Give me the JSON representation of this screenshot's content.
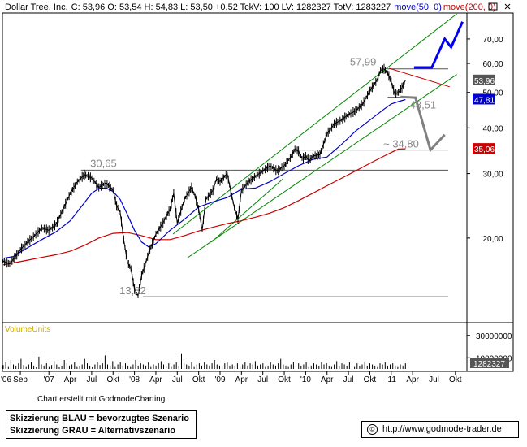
{
  "header": {
    "title": "Dollar Tree, Inc.",
    "quote": "C: 53,96  O: 53,54  H: 54,83  L: 53,50  +0,52  TckV: 100  LV: 1282327  TotV: 1283227",
    "ma50_label": "move(50, 0)",
    "ma200_label": "move(200, 0)",
    "ma50_color": "#0000cc",
    "ma200_color": "#cc0000"
  },
  "chart_data": {
    "type": "line",
    "yscale": "log",
    "ylim": [
      11.8,
      82
    ],
    "y_ticks": [
      {
        "value": 20,
        "label": "20,00"
      },
      {
        "value": 30,
        "label": "30,00"
      },
      {
        "value": 40,
        "label": "40,00"
      },
      {
        "value": 50,
        "label": "50,00"
      },
      {
        "value": 60,
        "label": "60,00"
      },
      {
        "value": 70,
        "label": "70,00"
      }
    ],
    "x_ticks": [
      {
        "t": 9,
        "label": "'06"
      },
      {
        "t": 11,
        "label": "Sep"
      },
      {
        "t": 15,
        "label": "'07"
      },
      {
        "t": 18,
        "label": "Apr"
      },
      {
        "t": 21,
        "label": "Jul"
      },
      {
        "t": 24,
        "label": "Okt"
      },
      {
        "t": 27,
        "label": "'08"
      },
      {
        "t": 30,
        "label": "Apr"
      },
      {
        "t": 33,
        "label": "Jul"
      },
      {
        "t": 36,
        "label": "Okt"
      },
      {
        "t": 39,
        "label": "'09"
      },
      {
        "t": 42,
        "label": "Apr"
      },
      {
        "t": 45,
        "label": "Jul"
      },
      {
        "t": 48,
        "label": "Okt"
      },
      {
        "t": 51,
        "label": "'10"
      },
      {
        "t": 54,
        "label": "Apr"
      },
      {
        "t": 57,
        "label": "Jul"
      },
      {
        "t": 60,
        "label": "Okt"
      },
      {
        "t": 63,
        "label": "'11"
      },
      {
        "t": 66,
        "label": "Apr"
      },
      {
        "t": 69,
        "label": "Jul"
      },
      {
        "t": 72,
        "label": "Okt"
      }
    ],
    "xlim": [
      8.6,
      73.5
    ],
    "series": [
      {
        "name": "Dollar Tree, Inc.",
        "color": "#000000",
        "x": [
          8.6,
          9.5,
          10.5,
          11,
          12,
          13,
          14,
          15,
          16,
          17,
          18,
          19,
          20,
          21,
          22,
          23,
          24,
          24.5,
          25,
          25.5,
          26,
          26.5,
          27,
          27.5,
          28,
          29,
          30,
          31,
          32,
          32.5,
          33,
          34,
          35,
          35.5,
          36,
          36.5,
          37,
          38,
          38.5,
          39,
          40,
          41,
          41.5,
          42,
          43,
          44,
          45,
          46,
          47,
          48,
          49,
          49.5,
          50,
          50.5,
          51,
          51.5,
          52,
          53,
          54,
          55,
          56,
          57,
          58,
          59,
          60,
          61,
          61.5,
          62,
          62.5,
          63,
          63.5,
          64,
          64.5,
          65
        ],
        "y": [
          17.3,
          17.0,
          18.0,
          18.6,
          19.5,
          20.3,
          21.3,
          21.0,
          21.8,
          24.0,
          26.5,
          28.5,
          29.8,
          29.2,
          27.5,
          28.3,
          27.0,
          24.5,
          23.5,
          19.8,
          17.2,
          16.5,
          14.5,
          13.9,
          15.8,
          18.2,
          20.5,
          22.0,
          24.0,
          26.5,
          22.0,
          25.5,
          27.5,
          26.0,
          24.0,
          21.0,
          25.5,
          27.0,
          29.0,
          28.5,
          30.0,
          24.2,
          22.5,
          27.0,
          28.5,
          29.5,
          30.5,
          31.5,
          30.5,
          31.5,
          33.5,
          35.0,
          34.5,
          33.0,
          33.5,
          32.5,
          33.5,
          33.8,
          38.5,
          41.0,
          42.0,
          43.5,
          44.5,
          46.5,
          50.5,
          54.0,
          57.5,
          58.0,
          56.5,
          53.5,
          49.5,
          50.0,
          51.5,
          53.96
        ]
      },
      {
        "name": "move(50, 0)",
        "color": "#0000cc",
        "x": [
          8.6,
          10,
          12,
          14,
          16,
          18,
          20,
          21,
          22,
          23,
          24,
          25,
          26,
          27,
          28,
          29,
          30,
          32,
          34,
          36,
          38,
          40,
          42,
          44,
          46,
          48,
          50,
          52,
          54,
          56,
          58,
          60,
          62,
          63,
          64,
          65
        ],
        "y": [
          17.6,
          17.8,
          18.8,
          19.8,
          20.8,
          22.3,
          25.0,
          26.5,
          27.3,
          27.4,
          26.8,
          25.5,
          23.2,
          21.0,
          19.5,
          18.9,
          19.3,
          21.0,
          22.5,
          24.3,
          25.1,
          25.8,
          27.2,
          27.4,
          28.5,
          30.0,
          31.5,
          32.8,
          33.3,
          36.0,
          39.2,
          42.0,
          45.0,
          46.5,
          47.2,
          47.81
        ]
      },
      {
        "name": "move(200, 0)",
        "color": "#cc0000",
        "x": [
          8.6,
          10,
          12,
          14,
          16,
          18,
          20,
          22,
          24,
          26,
          28,
          30,
          32,
          34,
          36,
          38,
          40,
          42,
          44,
          46,
          48,
          50,
          52,
          54,
          56,
          58,
          60,
          62,
          64,
          65
        ],
        "y": [
          16.9,
          17.1,
          17.4,
          17.7,
          18.0,
          18.4,
          19.1,
          20.0,
          20.6,
          20.7,
          20.3,
          19.8,
          19.8,
          20.3,
          20.9,
          21.4,
          21.9,
          22.3,
          22.8,
          23.4,
          24.2,
          25.3,
          26.5,
          27.8,
          29.1,
          30.5,
          32.0,
          33.5,
          35.0,
          35.06
        ]
      }
    ],
    "price_tags": [
      {
        "value": 53.96,
        "label": "53,96",
        "color": "#555555"
      },
      {
        "value": 47.81,
        "label": "47,81",
        "color": "#0000cc"
      },
      {
        "value": 35.06,
        "label": "35,06",
        "color": "#cc0000"
      }
    ],
    "annotations": [
      {
        "label": "57,99",
        "value": 57.99
      },
      {
        "label": "30,65",
        "value": 30.65
      },
      {
        "label": "13,82",
        "value": 13.82
      },
      {
        "label": "48,51",
        "value": 48.51
      },
      {
        "label": "~ 34,80",
        "value": 34.8
      }
    ],
    "horizontal_lines": [
      {
        "value": 57.99,
        "x_from": 62.4,
        "x_to": 71
      },
      {
        "value": 48.51,
        "x_from": 62.5,
        "x_to": 66
      },
      {
        "value": 34.8,
        "x_from": 50.2,
        "x_to": 71
      },
      {
        "value": 30.65,
        "x_from": 19.5,
        "x_to": 71
      },
      {
        "value": 13.82,
        "x_from": 28.2,
        "x_to": 71
      }
    ],
    "trend_lines": [
      {
        "color": "#008800",
        "points": [
          [
            32.4,
            20.5
          ],
          [
            72.2,
            82.0
          ]
        ]
      },
      {
        "color": "#008800",
        "points": [
          [
            34.5,
            17.7
          ],
          [
            72.2,
            56.0
          ]
        ]
      },
      {
        "color": "#008800",
        "points": [
          [
            37.8,
            19.5
          ],
          [
            47.8,
            29.0
          ]
        ]
      },
      {
        "color": "#cc0000",
        "points": [
          [
            62.7,
            58.2
          ],
          [
            71.2,
            51.8
          ]
        ]
      }
    ],
    "scenario_blue": {
      "color": "#0000ee",
      "label": "Skizzierung BLAU = bevorzugtes Szenario",
      "points": [
        [
          66.2,
          58.5
        ],
        [
          68.7,
          58.5
        ],
        [
          70.5,
          70.0
        ],
        [
          71.4,
          66.5
        ],
        [
          73.0,
          78.0
        ]
      ]
    },
    "scenario_grey": {
      "color": "#808080",
      "label": "Skizzierung GRAU = Alternativszenario",
      "points": [
        [
          64.3,
          48.6
        ],
        [
          66.4,
          48.4
        ],
        [
          68.5,
          34.8
        ],
        [
          70.5,
          38.3
        ]
      ]
    },
    "volume": {
      "title": "VolumeUnits",
      "ylim": [
        0,
        32000000
      ],
      "y_ticks": [
        {
          "value": 30000000,
          "label": "30000000"
        },
        {
          "value": 10000000,
          "label": "10000000"
        }
      ],
      "last_label": "1282327",
      "bars_x_from": 8.6,
      "bars_x_to": 65,
      "values": [
        3.5,
        6,
        2.5,
        8,
        4,
        3,
        5,
        9,
        3.5,
        2.5,
        4,
        6,
        3,
        2,
        11,
        4,
        3,
        5,
        2.5,
        3.5,
        7,
        4,
        2,
        3,
        8,
        5,
        3,
        4,
        6,
        2.5,
        3,
        4,
        9,
        5,
        3,
        2,
        4,
        6,
        3.5,
        5,
        12,
        4,
        3,
        7,
        2.5,
        4,
        6,
        3,
        5,
        3,
        2.5,
        4,
        8,
        3,
        5,
        4,
        3,
        6,
        2.5,
        4,
        3,
        5,
        7,
        4,
        3,
        5,
        2.5,
        4,
        6,
        3,
        14,
        5,
        4,
        3,
        6,
        2.5,
        4,
        5,
        3,
        6,
        4,
        3,
        5,
        8,
        4,
        3,
        2.5,
        5,
        6,
        3,
        4,
        3,
        5,
        2.5,
        4,
        6,
        3,
        5,
        4,
        7,
        3,
        4,
        5,
        2.5,
        3,
        6,
        4,
        3,
        5,
        9,
        4,
        3,
        2.5,
        4,
        6,
        3,
        5,
        3,
        4,
        6,
        2.5,
        3,
        5,
        4,
        3,
        6,
        4,
        5,
        3,
        2.5,
        4,
        7,
        3,
        5,
        4,
        3,
        6,
        4,
        2.5,
        5,
        3,
        4,
        6,
        3,
        5,
        4,
        3,
        2.5,
        5,
        4,
        6,
        3,
        4,
        5,
        3,
        2.5,
        4,
        3,
        5
      ]
    }
  },
  "footer": {
    "credit": "Chart erstellt mit GodmodeCharting",
    "copyright_symbol": "©",
    "url": "http://www.godmode-trader.de"
  }
}
